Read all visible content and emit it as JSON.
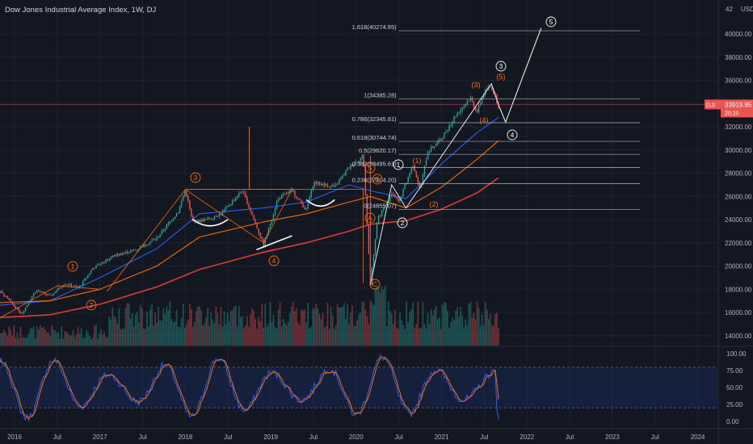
{
  "header": {
    "title": "Dow Jones Industrial Average Index, 1W, DJ"
  },
  "colors": {
    "background": "#131722",
    "grid": "#1e222d",
    "up": "#26a69a",
    "down": "#ef5350",
    "ma_blue": "#2962ff",
    "ma_orange": "#ff6d00",
    "ma_red": "#e53935",
    "wave_orange": "#ff6d00",
    "wave_white": "#ffffff",
    "fib": "#b2b5be",
    "stoch_k": "#2962ff",
    "stoch_d": "#ff6d00",
    "stoch_band": "#2962ff"
  },
  "price_axis": {
    "currency": "USD",
    "top_partial_label": "42",
    "ticks": [
      "40000.00",
      "38000.00",
      "36000.00",
      "34000.00",
      "32000.00",
      "30000.00",
      "28000.00",
      "26000.00",
      "24000.00",
      "22000.00",
      "20000.00",
      "18000.00",
      "16000.00",
      "14000.00"
    ],
    "current_label": "DJI",
    "current_value": "33919.85",
    "current_sub": "20:20"
  },
  "stoch_axis": {
    "ticks": [
      "100.00",
      "75.00",
      "50.00",
      "25.00",
      "0.00"
    ]
  },
  "time_axis": {
    "labels": [
      "2016",
      "Jul",
      "2017",
      "Jul",
      "2018",
      "Jul",
      "2019",
      "Jul",
      "2020",
      "Jul",
      "2021",
      "Jul",
      "2022",
      "Jul",
      "2023",
      "Jul",
      "2024"
    ]
  },
  "fib_levels": [
    {
      "label": "1.618(40274.95)",
      "value": 40274.95
    },
    {
      "label": "1(34385.28)",
      "value": 34385.28
    },
    {
      "label": "0.786(32345.81)",
      "value": 32345.81
    },
    {
      "label": "0.618(30744.74)",
      "value": 30744.74
    },
    {
      "label": "0.5(29620.17)",
      "value": 29620.17
    },
    {
      "label": "0.382(28495.61)",
      "value": 28495.61
    },
    {
      "label": "0.236(27104.20)",
      "value": 27104.2
    },
    {
      "label": "0(24855.07)",
      "value": 24855.07
    }
  ],
  "wave_labels": {
    "orange": [
      "1",
      "2",
      "3",
      "4",
      "5",
      "A",
      "B",
      "C"
    ],
    "orange_paren": [
      "(1)",
      "(2)",
      "(3)",
      "(4)",
      "(5)"
    ],
    "white": [
      "1",
      "2",
      "3",
      "4",
      "5"
    ]
  },
  "chart_data": {
    "type": "candlestick",
    "title": "Dow Jones Industrial Average Index, 1W, DJ",
    "x_range": [
      "2015-09",
      "2024-03"
    ],
    "y_range": [
      13000,
      42000
    ],
    "price_path": [
      {
        "date": "2015-09",
        "value": 16500
      },
      {
        "date": "2015-11",
        "value": 17800
      },
      {
        "date": "2016-02",
        "value": 15900
      },
      {
        "date": "2016-04",
        "value": 17900
      },
      {
        "date": "2016-06",
        "value": 17400
      },
      {
        "date": "2016-08",
        "value": 18500
      },
      {
        "date": "2016-10",
        "value": 18100
      },
      {
        "date": "2016-12",
        "value": 19800
      },
      {
        "date": "2017-03",
        "value": 20900
      },
      {
        "date": "2017-06",
        "value": 21400
      },
      {
        "date": "2017-09",
        "value": 22400
      },
      {
        "date": "2017-12",
        "value": 24700
      },
      {
        "date": "2018-01",
        "value": 26600
      },
      {
        "date": "2018-02",
        "value": 23800
      },
      {
        "date": "2018-04",
        "value": 24000
      },
      {
        "date": "2018-06",
        "value": 24500
      },
      {
        "date": "2018-09",
        "value": 26500
      },
      {
        "date": "2018-10",
        "value": 25000
      },
      {
        "date": "2018-12",
        "value": 21800
      },
      {
        "date": "2019-02",
        "value": 25800
      },
      {
        "date": "2019-04",
        "value": 26500
      },
      {
        "date": "2019-06",
        "value": 24800
      },
      {
        "date": "2019-07",
        "value": 27200
      },
      {
        "date": "2019-10",
        "value": 26800
      },
      {
        "date": "2019-12",
        "value": 28500
      },
      {
        "date": "2020-02",
        "value": 29500
      },
      {
        "date": "2020-03",
        "value": 18500
      },
      {
        "date": "2020-04",
        "value": 24000
      },
      {
        "date": "2020-06",
        "value": 26200
      },
      {
        "date": "2020-07",
        "value": 25500
      },
      {
        "date": "2020-09",
        "value": 28800
      },
      {
        "date": "2020-10",
        "value": 26500
      },
      {
        "date": "2020-11",
        "value": 29800
      },
      {
        "date": "2021-01",
        "value": 31000
      },
      {
        "date": "2021-03",
        "value": 33000
      },
      {
        "date": "2021-05",
        "value": 34500
      },
      {
        "date": "2021-06",
        "value": 33300
      },
      {
        "date": "2021-07",
        "value": 35000
      },
      {
        "date": "2021-08",
        "value": 35500
      },
      {
        "date": "2021-09",
        "value": 33900
      }
    ],
    "moving_averages": [
      {
        "color": "#2962ff",
        "points": [
          {
            "date": "2015-09",
            "value": 16500
          },
          {
            "date": "2016-06",
            "value": 17000
          },
          {
            "date": "2017-01",
            "value": 19000
          },
          {
            "date": "2017-09",
            "value": 21500
          },
          {
            "date": "2018-03",
            "value": 24500
          },
          {
            "date": "2018-12",
            "value": 25000
          },
          {
            "date": "2019-06",
            "value": 25500
          },
          {
            "date": "2019-12",
            "value": 27000
          },
          {
            "date": "2020-03",
            "value": 26500
          },
          {
            "date": "2020-08",
            "value": 25800
          },
          {
            "date": "2021-01",
            "value": 28800
          },
          {
            "date": "2021-06",
            "value": 31500
          },
          {
            "date": "2021-09",
            "value": 32800
          }
        ]
      },
      {
        "color": "#ff6d00",
        "points": [
          {
            "date": "2015-09",
            "value": 16800
          },
          {
            "date": "2016-06",
            "value": 17000
          },
          {
            "date": "2017-01",
            "value": 18000
          },
          {
            "date": "2017-09",
            "value": 20000
          },
          {
            "date": "2018-03",
            "value": 22500
          },
          {
            "date": "2018-12",
            "value": 23800
          },
          {
            "date": "2019-06",
            "value": 24500
          },
          {
            "date": "2019-12",
            "value": 25500
          },
          {
            "date": "2020-03",
            "value": 26000
          },
          {
            "date": "2020-08",
            "value": 25000
          },
          {
            "date": "2021-01",
            "value": 26800
          },
          {
            "date": "2021-06",
            "value": 29200
          },
          {
            "date": "2021-09",
            "value": 30800
          }
        ]
      },
      {
        "color": "#e53935",
        "points": [
          {
            "date": "2015-09",
            "value": 15500
          },
          {
            "date": "2016-06",
            "value": 15800
          },
          {
            "date": "2017-01",
            "value": 16700
          },
          {
            "date": "2017-09",
            "value": 18200
          },
          {
            "date": "2018-03",
            "value": 19700
          },
          {
            "date": "2018-12",
            "value": 21200
          },
          {
            "date": "2019-06",
            "value": 22000
          },
          {
            "date": "2019-12",
            "value": 23000
          },
          {
            "date": "2020-03",
            "value": 23600
          },
          {
            "date": "2020-08",
            "value": 23900
          },
          {
            "date": "2021-01",
            "value": 24900
          },
          {
            "date": "2021-06",
            "value": 26300
          },
          {
            "date": "2021-09",
            "value": 27600
          }
        ]
      }
    ],
    "projection": [
      {
        "date": "2021-09",
        "value": 33900
      },
      {
        "date": "2021-10",
        "value": 32400
      },
      {
        "date": "2022-03",
        "value": 40500
      }
    ],
    "stochastic_range": [
      0,
      100
    ],
    "stochastic_bands": [
      20,
      80
    ]
  }
}
